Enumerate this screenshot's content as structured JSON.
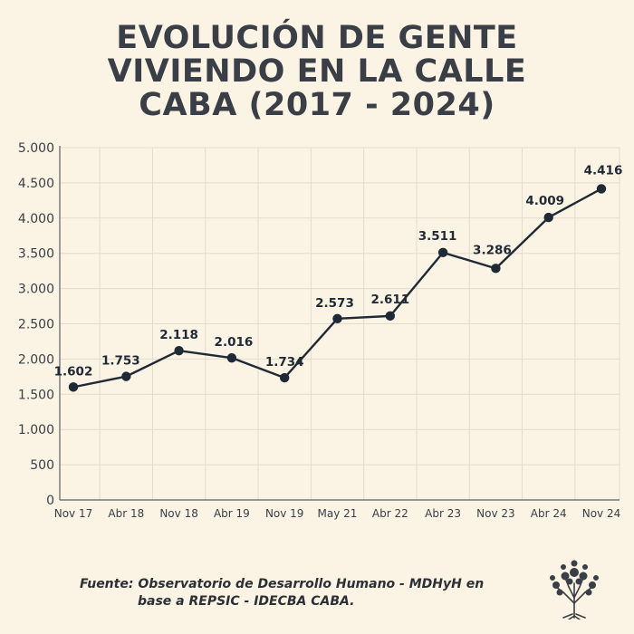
{
  "title_lines": [
    "EVOLUCIÓN DE GENTE",
    "VIVIENDO EN LA CALLE",
    "CABA (2017 - 2024)"
  ],
  "source_lines": [
    "Fuente: Observatorio de Desarrollo Humano - MDHyH en",
    "base a REPSIC - IDECBA CABA."
  ],
  "logo_icon": "tree-icon",
  "colors": {
    "background": "#fbf3e3",
    "line": "#1f2a36",
    "grid": "#e4dccb",
    "text": "#3a3f47"
  },
  "chart_data": {
    "type": "line",
    "title": "EVOLUCIÓN DE GENTE VIVIENDO EN LA CALLE CABA (2017 - 2024)",
    "xlabel": "",
    "ylabel": "",
    "categories": [
      "Nov 17",
      "Abr 18",
      "Nov 18",
      "Abr 19",
      "Nov 19",
      "May 21",
      "Abr 22",
      "Abr 23",
      "Nov 23",
      "Abr 24",
      "Nov 24"
    ],
    "values": [
      1602,
      1753,
      2118,
      2016,
      1734,
      2573,
      2611,
      3511,
      3286,
      4009,
      4416
    ],
    "value_labels": [
      "1.602",
      "1.753",
      "2.118",
      "2.016",
      "1.734",
      "2.573",
      "2.611",
      "3.511",
      "3.286",
      "4.009",
      "4.416"
    ],
    "y_ticks": [
      0,
      500,
      1000,
      1500,
      2000,
      2500,
      3000,
      3500,
      4000,
      4500,
      5000
    ],
    "y_tick_labels": [
      "0",
      "500",
      "1.000",
      "1.500",
      "2.000",
      "2.500",
      "3.000",
      "3.500",
      "4.000",
      "4.500",
      "5.000"
    ],
    "ylim": [
      0,
      5000
    ],
    "grid": true
  }
}
